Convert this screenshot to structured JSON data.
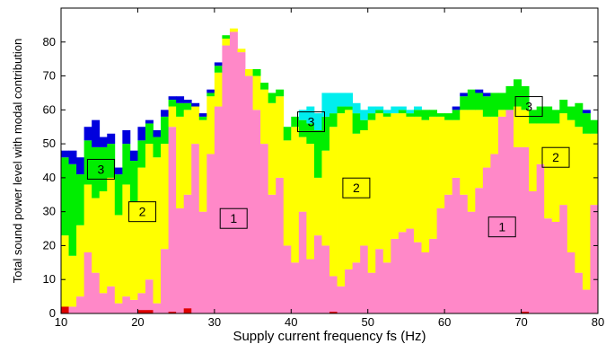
{
  "chart_data": {
    "type": "bar",
    "stacked": true,
    "title": "",
    "xlabel": "Supply current frequency fs (Hz)",
    "ylabel": "Total sound power level with modal contribution",
    "xlim": [
      10,
      80
    ],
    "ylim": [
      0,
      90
    ],
    "xticks": [
      "10",
      "20",
      "30",
      "40",
      "50",
      "60",
      "70",
      "80"
    ],
    "yticks": [
      "0",
      "10",
      "20",
      "30",
      "40",
      "50",
      "60",
      "70",
      "80"
    ],
    "grid": false,
    "legend": "none",
    "bin_width_hz": 1,
    "x": [
      10,
      11,
      12,
      13,
      14,
      15,
      16,
      17,
      18,
      19,
      20,
      21,
      22,
      23,
      24,
      25,
      26,
      27,
      28,
      29,
      30,
      31,
      32,
      33,
      34,
      35,
      36,
      37,
      38,
      39,
      40,
      41,
      42,
      43,
      44,
      45,
      46,
      47,
      48,
      49,
      50,
      51,
      52,
      53,
      54,
      55,
      56,
      57,
      58,
      59,
      60,
      61,
      62,
      63,
      64,
      65,
      66,
      67,
      68,
      69,
      70,
      71,
      72,
      73,
      74,
      75,
      76,
      77,
      78,
      79
    ],
    "series": [
      {
        "color": "#ff88c8",
        "values": [
          1,
          2,
          5,
          18,
          12,
          6,
          8,
          3,
          5,
          4,
          6,
          10,
          3,
          19,
          55,
          31,
          35,
          50,
          30,
          47,
          61,
          79,
          83,
          77,
          70,
          60,
          50,
          35,
          40,
          20,
          15,
          30,
          16,
          23,
          20,
          11,
          8,
          13,
          15,
          20,
          12,
          19,
          15,
          22,
          24,
          25,
          21,
          18,
          22,
          31,
          35,
          40,
          35,
          30,
          37,
          43,
          47,
          58,
          60,
          49,
          49,
          36,
          44,
          28,
          27,
          32,
          18,
          12,
          7,
          32
        ]
      },
      {
        "color": "#ffff00",
        "values": [
          22,
          15,
          21,
          20,
          22,
          30,
          32,
          26,
          33,
          29,
          37,
          40,
          43,
          31,
          6,
          27,
          25,
          11,
          27,
          17,
          10,
          2,
          1,
          1,
          2,
          10,
          16,
          27,
          24,
          31,
          40,
          22,
          34,
          17,
          28,
          44,
          51,
          47,
          38,
          34,
          45,
          40,
          43,
          37,
          35,
          33,
          37,
          39,
          36,
          27,
          22,
          17,
          25,
          30,
          23,
          15,
          11,
          2,
          0,
          12,
          11,
          20,
          12,
          28,
          29,
          27,
          39,
          43,
          46,
          21
        ]
      },
      {
        "color": "#00ee00",
        "values": [
          23,
          27,
          15,
          13,
          15,
          13,
          10,
          12,
          12,
          12,
          8,
          6,
          6,
          8,
          2,
          4,
          2,
          0,
          1,
          1,
          2,
          1,
          0,
          0,
          0,
          2,
          2,
          3,
          2,
          4,
          3,
          5,
          6,
          14,
          10,
          4,
          2,
          1,
          6,
          3,
          2,
          1,
          1,
          0,
          1,
          1,
          2,
          3,
          2,
          1,
          2,
          3,
          4,
          6,
          5,
          6,
          7,
          5,
          7,
          8,
          7,
          4,
          5,
          5,
          4,
          4,
          4,
          7,
          6,
          4
        ]
      },
      {
        "color": "#00eeee",
        "values": [
          0,
          0,
          0,
          0,
          0,
          0,
          0,
          0,
          0,
          0,
          0,
          0,
          0,
          0,
          0,
          0,
          0,
          0,
          0,
          0,
          0,
          0,
          0,
          0,
          0,
          0,
          0,
          0,
          0,
          0,
          0,
          3,
          5,
          5,
          7,
          6,
          4,
          4,
          3,
          3,
          2,
          1,
          1,
          2,
          1,
          1,
          1,
          0,
          0,
          0,
          0,
          0,
          0,
          0,
          0,
          0,
          0,
          0,
          0,
          0,
          0,
          0,
          0,
          0,
          0,
          0,
          0,
          0,
          0,
          0
        ]
      },
      {
        "color": "#0000dd",
        "values": [
          2,
          4,
          5,
          4,
          8,
          3,
          3,
          2,
          4,
          3,
          4,
          1,
          2,
          2,
          1,
          2,
          1,
          1,
          1,
          1,
          1,
          0,
          0,
          0,
          0,
          0,
          0,
          0,
          0,
          0,
          0,
          0,
          0,
          0,
          0,
          0,
          0,
          0,
          0,
          0,
          0,
          0,
          0,
          0,
          0,
          0,
          0,
          0,
          0,
          0,
          0,
          1,
          1,
          0,
          1,
          1,
          0,
          0,
          0,
          0,
          0,
          0,
          0,
          0,
          0,
          0,
          0,
          0,
          1,
          0
        ]
      }
    ],
    "low_level": {
      "color": "#dd0000",
      "x": [
        10,
        20,
        21,
        26,
        24,
        45,
        70
      ],
      "values": [
        2,
        1,
        1,
        1.5,
        0.5,
        0.5,
        0.5
      ]
    },
    "annotations": [
      {
        "text": "3",
        "x": 15.2,
        "y": 42.5
      },
      {
        "text": "2",
        "x": 20.6,
        "y": 30
      },
      {
        "text": "1",
        "x": 32.5,
        "y": 28
      },
      {
        "text": "3",
        "x": 42.6,
        "y": 56.5
      },
      {
        "text": "2",
        "x": 48.5,
        "y": 37
      },
      {
        "text": "1",
        "x": 67.5,
        "y": 25.5
      },
      {
        "text": "3",
        "x": 71,
        "y": 61
      },
      {
        "text": "2",
        "x": 74.5,
        "y": 46
      }
    ]
  }
}
